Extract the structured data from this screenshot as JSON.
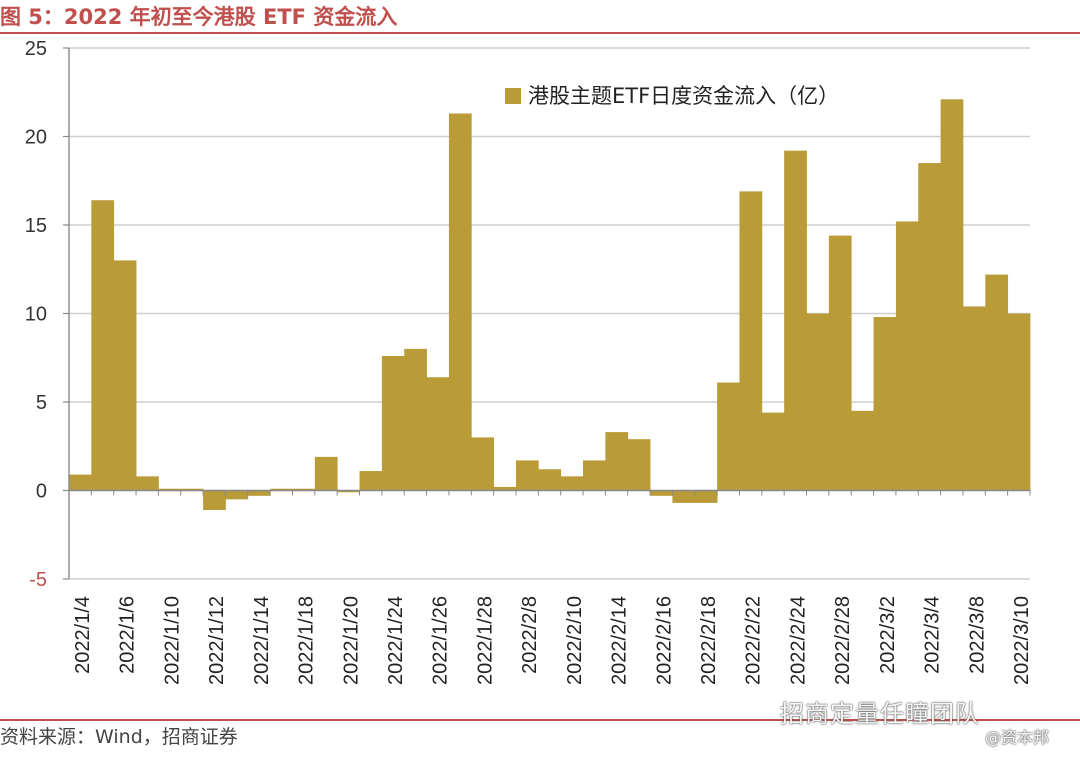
{
  "figure": {
    "title": "图 5：2022 年初至今港股 ETF 资金流入",
    "source": "资料来源：Wind，招商证券",
    "watermark_main": "招商定量任瞳团队",
    "watermark_sub": "@资本邦"
  },
  "colors": {
    "bar": "#b99b38",
    "accent": "#c0504d",
    "grid": "#cfcfcf",
    "axis": "#888888"
  },
  "chart_data": {
    "type": "bar",
    "legend_label": "港股主题ETF日度资金流入（亿）",
    "legend_position": "top-right",
    "grid": true,
    "ylim": [
      -5,
      25
    ],
    "yticks": [
      -5,
      0,
      5,
      10,
      15,
      20,
      25
    ],
    "xtick_labels": [
      "2022/1/4",
      "2022/1/6",
      "2022/1/10",
      "2022/1/12",
      "2022/1/14",
      "2022/1/18",
      "2022/1/20",
      "2022/1/24",
      "2022/1/26",
      "2022/1/28",
      "2022/2/8",
      "2022/2/10",
      "2022/2/14",
      "2022/2/16",
      "2022/2/18",
      "2022/2/22",
      "2022/2/24",
      "2022/2/28",
      "2022/3/2",
      "2022/3/4",
      "2022/3/8",
      "2022/3/10"
    ],
    "categories": [
      "2022/1/4",
      "2022/1/5",
      "2022/1/6",
      "2022/1/7",
      "2022/1/10",
      "2022/1/11",
      "2022/1/12",
      "2022/1/13",
      "2022/1/14",
      "2022/1/17",
      "2022/1/18",
      "2022/1/19",
      "2022/1/20",
      "2022/1/21",
      "2022/1/24",
      "2022/1/25",
      "2022/1/26",
      "2022/1/27",
      "2022/1/28",
      "2022/2/7",
      "2022/2/8",
      "2022/2/9",
      "2022/2/10",
      "2022/2/11",
      "2022/2/14",
      "2022/2/15",
      "2022/2/16",
      "2022/2/17",
      "2022/2/18",
      "2022/2/21",
      "2022/2/22",
      "2022/2/23",
      "2022/2/24",
      "2022/2/25",
      "2022/2/28",
      "2022/3/1",
      "2022/3/2",
      "2022/3/3",
      "2022/3/4",
      "2022/3/7",
      "2022/3/8",
      "2022/3/9",
      "2022/3/10"
    ],
    "values": [
      0.9,
      16.4,
      13.0,
      0.8,
      0.1,
      0.1,
      -1.1,
      -0.5,
      -0.3,
      0.1,
      0.1,
      1.9,
      -0.1,
      1.1,
      7.6,
      8.0,
      6.4,
      21.3,
      3.0,
      0.2,
      1.7,
      1.2,
      0.8,
      1.7,
      3.3,
      2.9,
      -0.3,
      -0.7,
      -0.7,
      6.1,
      16.9,
      4.4,
      19.2,
      10.0,
      14.4,
      4.5,
      9.8,
      15.2,
      18.5,
      22.1,
      10.4,
      12.2,
      10.0
    ]
  }
}
